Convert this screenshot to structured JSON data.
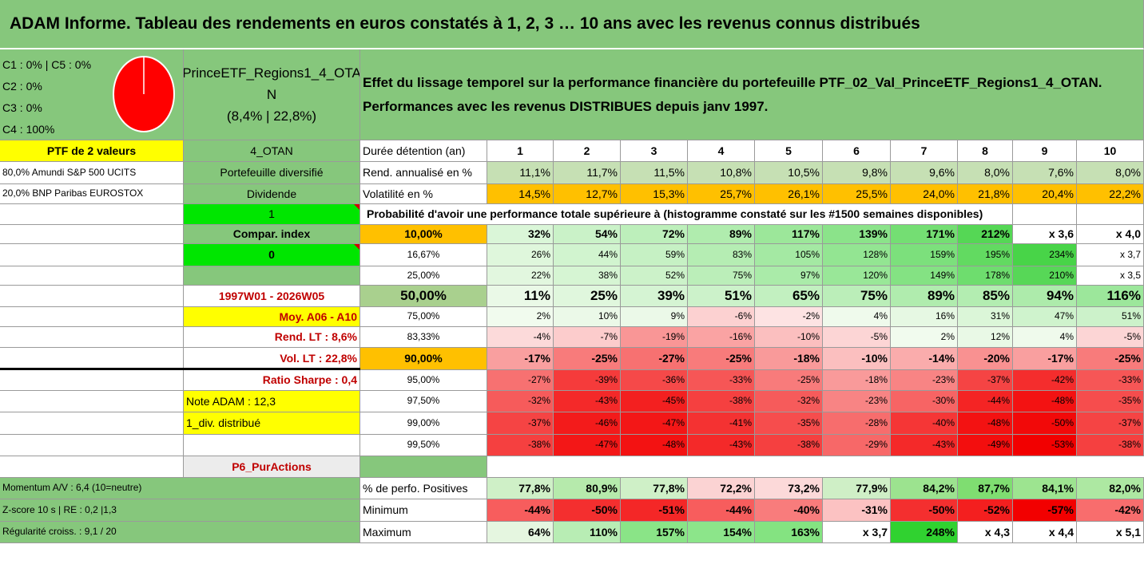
{
  "title": "ADAM Informe. Tableau des rendements en euros constatés à 1, 2, 3 … 10 ans avec les revenus connus distribués",
  "colors": {
    "header_green": "#86c77c",
    "yellow": "#ffff00",
    "lime": "#00e600",
    "orange": "#ffc000",
    "pie": "#ff0000",
    "label_red": "#c00000"
  },
  "classes_lines": [
    "C1 : 0% | C5 : 0%",
    "C2 : 0%",
    "C3 : 0%",
    "C4 : 100%"
  ],
  "pie": {
    "C1": 0,
    "C2": 0,
    "C3": 0,
    "C4": 100,
    "C5": 0
  },
  "fund_title_lines": [
    "PrinceETF_Regions1_4_OTA",
    "N",
    "(8,4% | 22,8%)"
  ],
  "description": "Effet du lissage temporel sur la performance financière du portefeuille PTF_02_Val_PrinceETF_Regions1_4_OTAN. Performances avec les revenus DISTRIBUES depuis janv 1997.",
  "left": {
    "ptf_label": "PTF de 2 valeurs",
    "holding1": "80,0% Amundi S&P 500 UCITS",
    "holding2": "20,0% BNP Paribas EUROSTOX",
    "code": "4_OTAN",
    "portfolio_type": "Portefeuille diversifié",
    "dividend_label": "Dividende",
    "dividend_value": "1",
    "compar_label": "Compar. index",
    "compar_value": "0",
    "period": "1997W01 - 2026W05",
    "moy": "Moy. A06 - A10",
    "rend_lt": "Rend. LT : 8,6%",
    "vol_lt": "Vol. LT : 22,8%",
    "sharpe": "Ratio Sharpe : 0,4",
    "note": "Note ADAM : 12,3",
    "div_distrib": "1_div. distribué",
    "p6": "P6_PurActions",
    "momentum": "Momentum A/V : 6,4 (10=neutre)",
    "zscore": "Z-score 10 s | RE : 0,2 |1,3",
    "regularite": "Régularité croiss. : 9,1 / 20"
  },
  "table": {
    "duration_label": "Durée détention (an)",
    "years": [
      "1",
      "2",
      "3",
      "4",
      "5",
      "6",
      "7",
      "8",
      "9",
      "10"
    ],
    "rend_label": "Rend. annualisé en %",
    "rend": [
      "11,1%",
      "11,7%",
      "11,5%",
      "10,8%",
      "10,5%",
      "9,8%",
      "9,6%",
      "8,0%",
      "7,6%",
      "8,0%"
    ],
    "vol_label": "Volatilité en %",
    "vol": [
      "14,5%",
      "12,7%",
      "15,3%",
      "25,7%",
      "26,1%",
      "25,5%",
      "24,0%",
      "21,8%",
      "20,4%",
      "22,2%"
    ],
    "prob_title": "Probabilité d'avoir une performance totale supérieure à (histogramme constaté sur les #1500 semaines disponibles)",
    "percentiles": [
      {
        "p": "10,00%",
        "v": [
          "32%",
          "54%",
          "72%",
          "89%",
          "117%",
          "139%",
          "171%",
          "212%",
          "x 3,6",
          "x 4,0"
        ]
      },
      {
        "p": "16,67%",
        "v": [
          "26%",
          "44%",
          "59%",
          "83%",
          "105%",
          "128%",
          "159%",
          "195%",
          "234%",
          "x 3,7"
        ]
      },
      {
        "p": "25,00%",
        "v": [
          "22%",
          "38%",
          "52%",
          "75%",
          "97%",
          "120%",
          "149%",
          "178%",
          "210%",
          "x 3,5"
        ]
      },
      {
        "p": "50,00%",
        "v": [
          "11%",
          "25%",
          "39%",
          "51%",
          "65%",
          "75%",
          "89%",
          "85%",
          "94%",
          "116%"
        ]
      },
      {
        "p": "75,00%",
        "v": [
          "2%",
          "10%",
          "9%",
          "-6%",
          "-2%",
          "4%",
          "16%",
          "31%",
          "47%",
          "51%"
        ]
      },
      {
        "p": "83,33%",
        "v": [
          "-4%",
          "-7%",
          "-19%",
          "-16%",
          "-10%",
          "-5%",
          "2%",
          "12%",
          "4%",
          "-5%"
        ]
      },
      {
        "p": "90,00%",
        "v": [
          "-17%",
          "-25%",
          "-27%",
          "-25%",
          "-18%",
          "-10%",
          "-14%",
          "-20%",
          "-17%",
          "-25%"
        ]
      },
      {
        "p": "95,00%",
        "v": [
          "-27%",
          "-39%",
          "-36%",
          "-33%",
          "-25%",
          "-18%",
          "-23%",
          "-37%",
          "-42%",
          "-33%"
        ]
      },
      {
        "p": "97,50%",
        "v": [
          "-32%",
          "-43%",
          "-45%",
          "-38%",
          "-32%",
          "-23%",
          "-30%",
          "-44%",
          "-48%",
          "-35%"
        ]
      },
      {
        "p": "99,00%",
        "v": [
          "-37%",
          "-46%",
          "-47%",
          "-41%",
          "-35%",
          "-28%",
          "-40%",
          "-48%",
          "-50%",
          "-37%"
        ]
      },
      {
        "p": "99,50%",
        "v": [
          "-38%",
          "-47%",
          "-48%",
          "-43%",
          "-38%",
          "-29%",
          "-43%",
          "-49%",
          "-53%",
          "-38%"
        ]
      }
    ],
    "pos_label": "% de perfo. Positives",
    "pos": [
      "77,8%",
      "80,9%",
      "77,8%",
      "72,2%",
      "73,2%",
      "77,9%",
      "84,2%",
      "87,7%",
      "84,1%",
      "82,0%"
    ],
    "min_label": "Minimum",
    "min": [
      "-44%",
      "-50%",
      "-51%",
      "-44%",
      "-40%",
      "-31%",
      "-50%",
      "-52%",
      "-57%",
      "-42%"
    ],
    "max_label": "Maximum",
    "max": [
      "64%",
      "110%",
      "157%",
      "154%",
      "163%",
      "x 3,7",
      "248%",
      "x 4,3",
      "x 4,4",
      "x 5,1"
    ]
  }
}
